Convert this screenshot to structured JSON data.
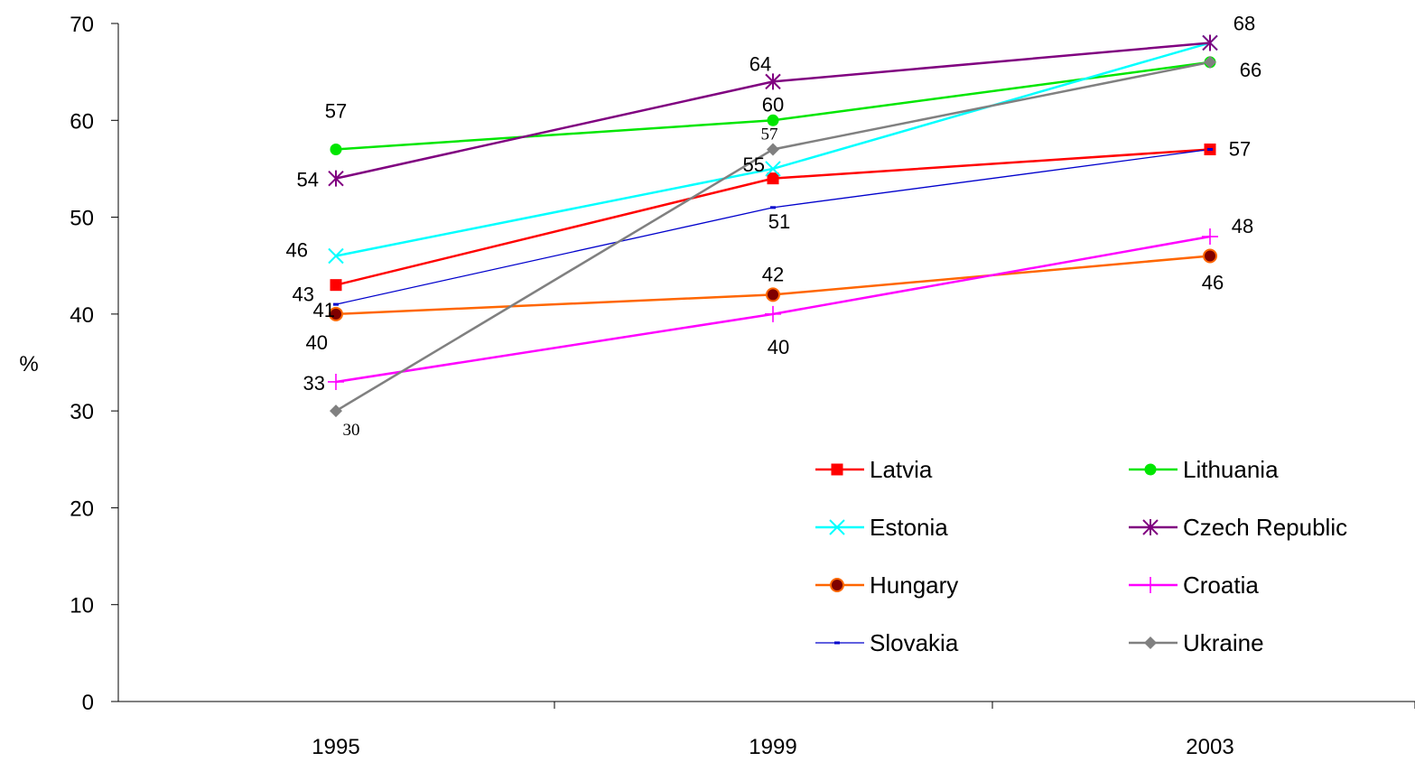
{
  "chart_data": {
    "type": "line",
    "title": "",
    "xlabel": "",
    "ylabel": "%",
    "categories": [
      "1995",
      "1999",
      "2003"
    ],
    "ylim": [
      0,
      70
    ],
    "y_ticks": [
      "0",
      "10",
      "20",
      "30",
      "40",
      "50",
      "60",
      "70"
    ],
    "grid": false,
    "legend_position": "bottom-right",
    "series": [
      {
        "name": "Latvia",
        "color": "#ff0000",
        "marker": "square",
        "values": [
          43,
          54,
          57
        ]
      },
      {
        "name": "Lithuania",
        "color": "#00e600",
        "marker": "circle",
        "values": [
          57,
          60,
          66
        ]
      },
      {
        "name": "Estonia",
        "color": "#00ffff",
        "marker": "x",
        "values": [
          46,
          55,
          68
        ]
      },
      {
        "name": "Czech Republic",
        "color": "#800080",
        "marker": "asterisk",
        "values": [
          54,
          64,
          68
        ]
      },
      {
        "name": "Hungary",
        "color": "#ff6600",
        "marker": "circle-dark",
        "values": [
          40,
          42,
          46
        ]
      },
      {
        "name": "Croatia",
        "color": "#ff00ff",
        "marker": "plus",
        "values": [
          33,
          40,
          48
        ]
      },
      {
        "name": "Slovakia",
        "color": "#0000cc",
        "marker": "dash",
        "values": [
          41,
          51,
          57
        ]
      },
      {
        "name": "Ukraine",
        "color": "#808080",
        "marker": "diamond",
        "values": [
          30,
          57,
          66
        ]
      }
    ],
    "data_labels": [
      {
        "text": "57",
        "x": "1995",
        "y": 57,
        "series": "Lithuania"
      },
      {
        "text": "54",
        "x": "1995",
        "y": 54,
        "series": "Czech Republic"
      },
      {
        "text": "46",
        "x": "1995",
        "y": 46,
        "series": "Estonia"
      },
      {
        "text": "43",
        "x": "1995",
        "y": 43,
        "series": "Latvia"
      },
      {
        "text": "41",
        "x": "1995",
        "y": 41,
        "series": "Slovakia"
      },
      {
        "text": "40",
        "x": "1995",
        "y": 40,
        "series": "Hungary"
      },
      {
        "text": "33",
        "x": "1995",
        "y": 33,
        "series": "Croatia"
      },
      {
        "text": "30",
        "x": "1995",
        "y": 30,
        "series": "Ukraine"
      },
      {
        "text": "64",
        "x": "1999",
        "y": 64,
        "series": "Czech Republic"
      },
      {
        "text": "60",
        "x": "1999",
        "y": 60,
        "series": "Lithuania"
      },
      {
        "text": "57",
        "x": "1999",
        "y": 57,
        "series": "Ukraine"
      },
      {
        "text": "55",
        "x": "1999",
        "y": 55,
        "series": "Estonia"
      },
      {
        "text": "51",
        "x": "1999",
        "y": 51,
        "series": "Slovakia"
      },
      {
        "text": "42",
        "x": "1999",
        "y": 42,
        "series": "Hungary"
      },
      {
        "text": "40",
        "x": "1999",
        "y": 40,
        "series": "Croatia"
      },
      {
        "text": "68",
        "x": "2003",
        "y": 68,
        "series": "Czech Republic"
      },
      {
        "text": "66",
        "x": "2003",
        "y": 66,
        "series": "Ukraine"
      },
      {
        "text": "57",
        "x": "2003",
        "y": 57,
        "series": "Latvia"
      },
      {
        "text": "48",
        "x": "2003",
        "y": 48,
        "series": "Croatia"
      },
      {
        "text": "46",
        "x": "2003",
        "y": 46,
        "series": "Hungary"
      }
    ]
  }
}
